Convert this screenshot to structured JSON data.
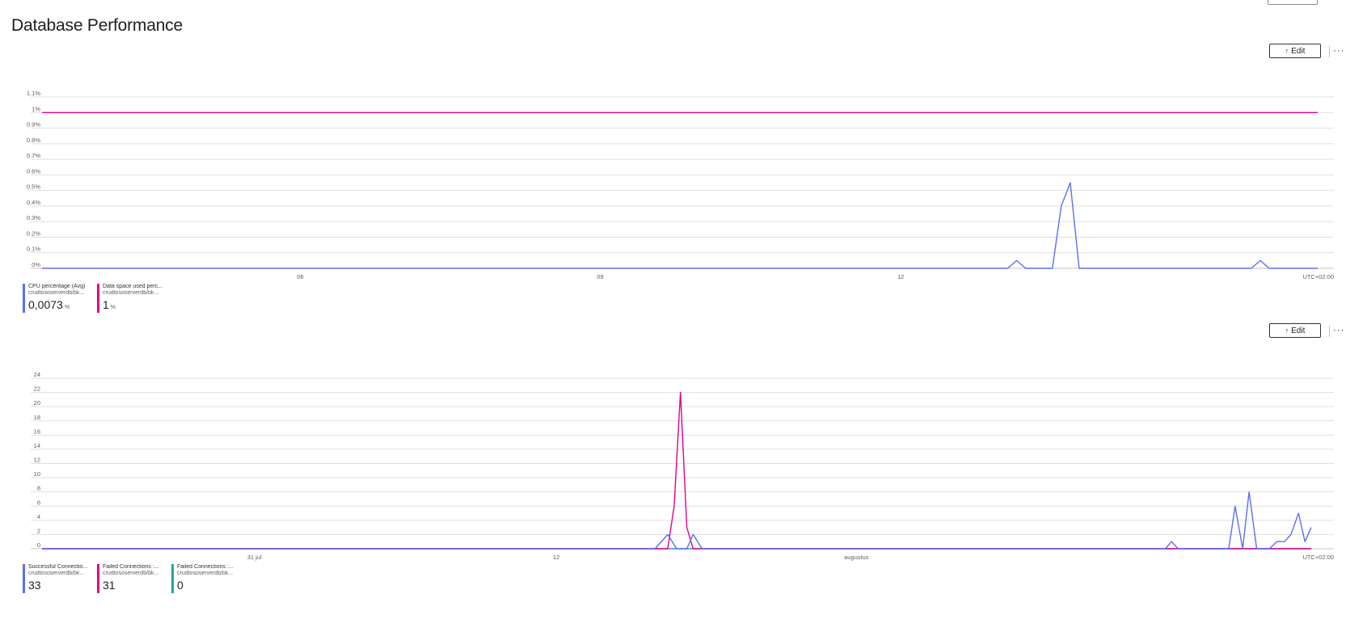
{
  "page": {
    "title": "Database Performance"
  },
  "tiles": [
    {
      "toolbar": {
        "edit_label": "Edit",
        "edit_icon": "pin-icon",
        "more_label": "···",
        "more_icon": "ellipsis-icon"
      },
      "chart_data": {
        "type": "line",
        "x_tick_labels": [
          "06",
          "09",
          "12"
        ],
        "timezone_label": "UTC+02:00",
        "y_tick_labels": [
          "0%",
          "0.1%",
          "0.2%",
          "0.3%",
          "0.4%",
          "0.5%",
          "0.6%",
          "0.7%",
          "0.8%",
          "0.9%",
          "1%",
          "1.1%"
        ],
        "ylim": [
          0,
          1.1
        ],
        "grid": true,
        "series": [
          {
            "name": "CPU percentage (Avg)",
            "resource": "crudtososerverdb/bk...",
            "summary_value": "0,0073",
            "summary_unit": "%",
            "color": "#5b6ff0",
            "points": [
              [
                0,
                0
              ],
              [
                0.757,
                0
              ],
              [
                0.764,
                0.05
              ],
              [
                0.771,
                0
              ],
              [
                0.792,
                0
              ],
              [
                0.799,
                0.4
              ],
              [
                0.806,
                0.55
              ],
              [
                0.813,
                0
              ],
              [
                0.948,
                0
              ],
              [
                0.955,
                0.05
              ],
              [
                0.962,
                0
              ],
              [
                1,
                0
              ]
            ]
          },
          {
            "name": "Data space used perc...",
            "resource": "crudtososerverdb/bk...",
            "summary_value": "1",
            "summary_unit": "%",
            "color": "#e3008c",
            "points": [
              [
                0,
                1
              ],
              [
                1,
                1
              ]
            ]
          }
        ]
      }
    },
    {
      "toolbar": {
        "edit_label": "Edit",
        "edit_icon": "pin-icon",
        "more_label": "···",
        "more_icon": "ellipsis-icon"
      },
      "chart_data": {
        "type": "line",
        "x_tick_labels": [
          "31 jul",
          "12",
          "augustus"
        ],
        "timezone_label": "UTC+02:00",
        "y_tick_labels": [
          "0",
          "2",
          "4",
          "6",
          "8",
          "10",
          "12",
          "14",
          "16",
          "18",
          "20",
          "22",
          "24"
        ],
        "ylim": [
          0,
          24
        ],
        "grid": true,
        "series": [
          {
            "name": "Successful Connectio...",
            "resource": "crudtososerverdb/bk...",
            "summary_value": "33",
            "summary_unit": "",
            "color": "#5b6ff0",
            "points": [
              [
                0,
                0
              ],
              [
                0.483,
                0
              ],
              [
                0.493,
                2
              ],
              [
                0.5,
                0
              ],
              [
                0.508,
                0
              ],
              [
                0.513,
                2
              ],
              [
                0.52,
                0
              ],
              [
                0.885,
                0
              ],
              [
                0.89,
                1
              ],
              [
                0.895,
                0
              ],
              [
                0.935,
                0
              ],
              [
                0.94,
                6
              ],
              [
                0.946,
                0
              ],
              [
                0.951,
                8
              ],
              [
                0.957,
                0
              ],
              [
                0.967,
                0
              ],
              [
                0.973,
                1
              ],
              [
                0.979,
                1
              ],
              [
                0.984,
                2
              ],
              [
                0.99,
                5
              ],
              [
                0.995,
                1
              ],
              [
                1,
                3
              ]
            ]
          },
          {
            "name": "Failed Connections :...",
            "resource": "crudtososerverdb/bk...",
            "summary_value": "31",
            "summary_unit": "",
            "color": "#e3008c",
            "points": [
              [
                0,
                0
              ],
              [
                0.493,
                0
              ],
              [
                0.498,
                6
              ],
              [
                0.503,
                22
              ],
              [
                0.508,
                3
              ],
              [
                0.513,
                0
              ],
              [
                1,
                0
              ]
            ]
          },
          {
            "name": "Failed Connections :...",
            "resource": "crudtososerverdb/bk...",
            "summary_value": "0",
            "summary_unit": "",
            "color": "#2ba0a3",
            "points": [
              [
                0,
                0
              ],
              [
                1,
                0
              ]
            ]
          }
        ]
      }
    }
  ]
}
